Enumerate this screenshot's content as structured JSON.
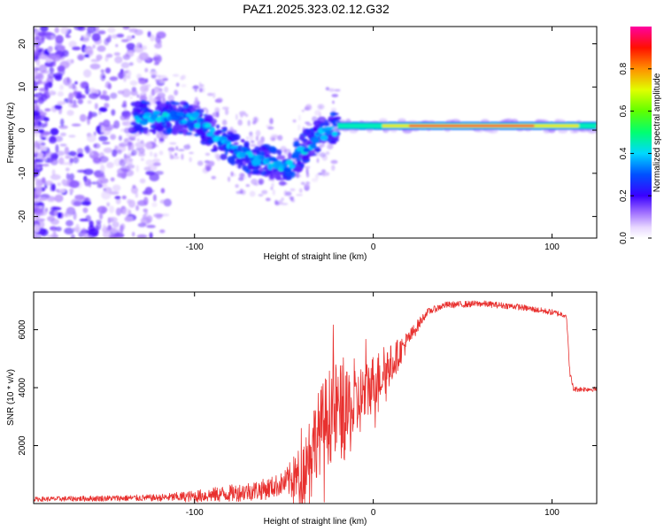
{
  "title": "PAZ1.2025.323.02.12.G32",
  "chart_data": [
    {
      "type": "heatmap",
      "name": "spectrogram",
      "xlabel": "Height of straight line (km)",
      "ylabel": "Frequency (Hz)",
      "xlim": [
        -190,
        125
      ],
      "ylim": [
        -25,
        24
      ],
      "xticks": [
        -100,
        0,
        100
      ],
      "yticks": [
        -20,
        -10,
        0,
        10,
        20
      ],
      "colorbar": {
        "label": "Normalized spectral amplitude",
        "range": [
          0,
          1
        ],
        "ticks": [
          "0.0",
          "0.2",
          "0.4",
          "0.6",
          "0.8"
        ],
        "tick_values": [
          0.0,
          0.2,
          0.4,
          0.6,
          0.8
        ]
      },
      "ridge": {
        "description": "peak frequency track",
        "x": [
          -130,
          -120,
          -110,
          -100,
          -90,
          -80,
          -70,
          -60,
          -55,
          -50,
          -45,
          -40,
          -35,
          -30,
          -25,
          -20,
          -10,
          0,
          10,
          20,
          40,
          60,
          80,
          100,
          110,
          125
        ],
        "y": [
          3,
          3,
          3,
          2.5,
          -1,
          -4,
          -6,
          -7,
          -8,
          -9,
          -7,
          -5,
          -3,
          -1,
          0,
          0.5,
          1,
          1,
          1,
          1,
          1,
          1,
          1,
          1,
          1,
          1
        ]
      }
    },
    {
      "type": "line",
      "name": "snr",
      "xlabel": "Height of straight line (km)",
      "ylabel": "SNR (10 * v/v)",
      "xlim": [
        -190,
        125
      ],
      "ylim": [
        0,
        7300
      ],
      "xticks": [
        -100,
        0,
        100
      ],
      "yticks": [
        2000,
        4000,
        6000
      ],
      "color": "#e8302e",
      "envelope": {
        "x": [
          -190,
          -150,
          -120,
          -100,
          -80,
          -60,
          -50,
          -40,
          -35,
          -30,
          -25,
          -20,
          -15,
          -10,
          -5,
          0,
          10,
          20,
          30,
          40,
          60,
          80,
          100,
          108,
          110,
          112,
          125
        ],
        "y": [
          150,
          180,
          200,
          250,
          350,
          500,
          700,
          1000,
          2000,
          2500,
          3000,
          3200,
          3000,
          3300,
          3800,
          4200,
          4800,
          5700,
          6600,
          6850,
          6900,
          6800,
          6600,
          6500,
          4500,
          3950,
          3950
        ]
      },
      "noise": {
        "x": [
          -190,
          -120,
          -80,
          -50,
          -40,
          -30,
          -20,
          -10,
          0,
          10,
          20,
          30,
          110,
          125
        ],
        "amplitude": [
          80,
          120,
          300,
          400,
          1100,
          1500,
          1800,
          1300,
          1000,
          700,
          300,
          120,
          100,
          80
        ]
      }
    }
  ]
}
